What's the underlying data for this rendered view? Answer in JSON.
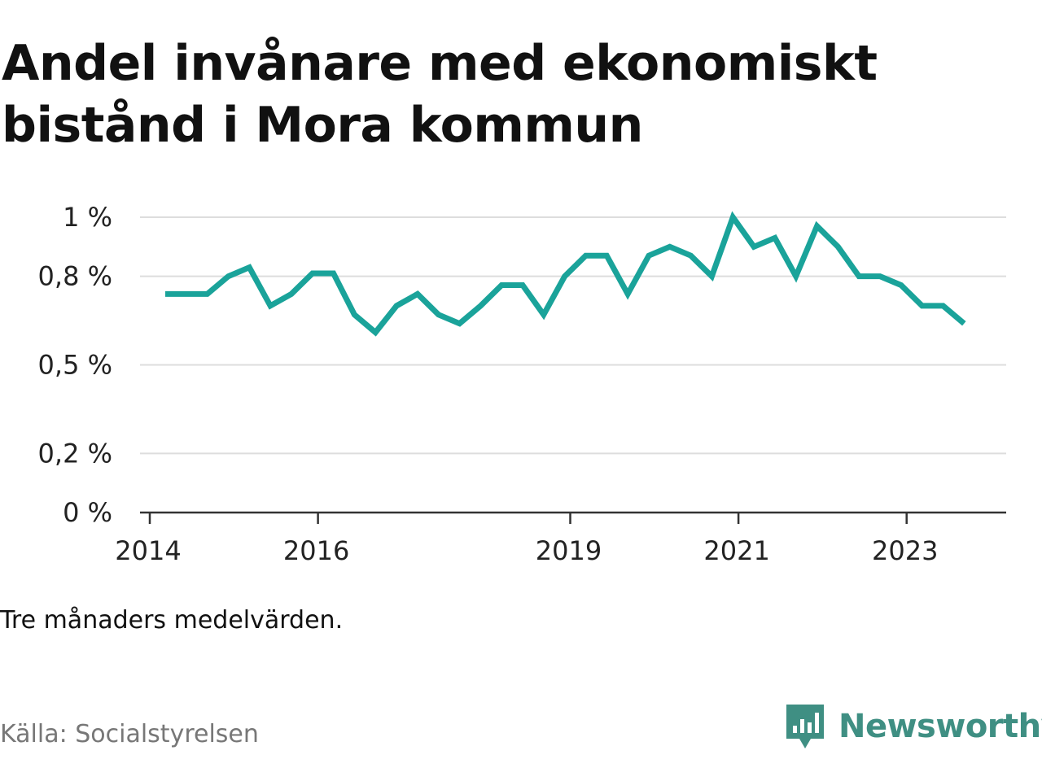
{
  "title": "Andel invånare med ekonomiskt bistånd i Mora kommun",
  "note": "Tre månaders medelvärden.",
  "source": "Källa: Socialstyrelsen",
  "brand": "Newsworthy",
  "colors": {
    "line": "#1aa39a",
    "brand": "#3f8f83",
    "grid": "#dddddd"
  },
  "chart_data": {
    "type": "line",
    "title": "Andel invånare med ekonomiskt bistånd i Mora kommun",
    "xlabel": "",
    "ylabel": "",
    "x_ticks": [
      {
        "value": 2014.0,
        "label": "2014"
      },
      {
        "value": 2016.0,
        "label": "2016"
      },
      {
        "value": 2019.0,
        "label": "2019"
      },
      {
        "value": 2021.0,
        "label": "2021"
      },
      {
        "value": 2023.0,
        "label": "2023"
      }
    ],
    "y_ticks": [
      {
        "value": 0,
        "label": "0 %"
      },
      {
        "value": 0.2,
        "label": "0,2 %"
      },
      {
        "value": 0.5,
        "label": "0,5 %"
      },
      {
        "value": 0.8,
        "label": "0,8 %"
      },
      {
        "value": 1.0,
        "label": "1 %"
      }
    ],
    "xlim": [
      2014.0,
      2024.3
    ],
    "ylim": [
      0,
      1.0
    ],
    "grid": true,
    "legend": "none",
    "series": [
      {
        "color": "#1aa39a",
        "x": [
          2014.3,
          2014.55,
          2014.8,
          2015.05,
          2015.3,
          2015.55,
          2015.8,
          2016.05,
          2016.3,
          2016.55,
          2016.8,
          2017.05,
          2017.3,
          2017.55,
          2017.8,
          2018.05,
          2018.3,
          2018.55,
          2018.8,
          2019.05,
          2019.3,
          2019.55,
          2019.8,
          2020.05,
          2020.3,
          2020.55,
          2020.8,
          2021.05,
          2021.3,
          2021.55,
          2021.8,
          2022.05,
          2022.3,
          2022.55,
          2022.8,
          2023.05,
          2023.3,
          2023.55,
          2023.8
        ],
        "values": [
          0.74,
          0.74,
          0.74,
          0.8,
          0.83,
          0.7,
          0.74,
          0.81,
          0.81,
          0.67,
          0.61,
          0.7,
          0.74,
          0.67,
          0.64,
          0.7,
          0.77,
          0.77,
          0.67,
          0.8,
          0.87,
          0.87,
          0.74,
          0.87,
          0.9,
          0.87,
          0.8,
          1.0,
          0.9,
          0.93,
          0.8,
          0.97,
          0.9,
          0.8,
          0.8,
          0.77,
          0.7,
          0.7,
          0.64
        ]
      }
    ]
  }
}
